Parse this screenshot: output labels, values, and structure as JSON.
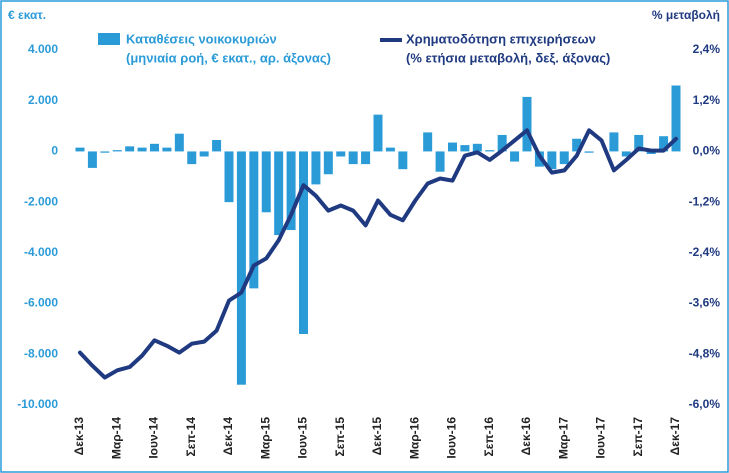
{
  "chart_data": {
    "type": "bar_line",
    "y_label": "€ εκατ.",
    "y2_label": "% μεταβολή",
    "categories": [
      "Δεκ-13",
      null,
      null,
      "Μαρ-14",
      null,
      null,
      "Ιουν-14",
      null,
      null,
      "Σεπ-14",
      null,
      null,
      "Δεκ-14",
      null,
      null,
      "Μαρ-15",
      null,
      null,
      "Ιουν-15",
      null,
      null,
      "Σεπ-15",
      null,
      null,
      "Δεκ-15",
      null,
      null,
      "Μαρ-16",
      null,
      null,
      "Ιουν-16",
      null,
      null,
      "Σεπ-16",
      null,
      null,
      "Δεκ-16",
      null,
      null,
      "Μαρ-17",
      null,
      null,
      "Ιουν-17",
      null,
      null,
      "Σεπ-17",
      null,
      null,
      "Δεκ-17"
    ],
    "series": [
      {
        "name": "Καταθέσεις νοικοκυριών",
        "description": "(μηνιαία ροή, € εκατ., αρ. άξονας)",
        "kind": "bar",
        "axis": "y",
        "color": "#2b9bd8",
        "values": [
          150,
          -650,
          -50,
          50,
          200,
          150,
          300,
          150,
          700,
          -500,
          -200,
          450,
          -2000,
          -9200,
          -5400,
          -2400,
          -3300,
          -3100,
          -7200,
          -1300,
          -900,
          -200,
          -500,
          -500,
          1450,
          150,
          -700,
          0,
          750,
          -800,
          350,
          250,
          300,
          50,
          650,
          -400,
          2150,
          -600,
          -700,
          -500,
          500,
          -50,
          0,
          750,
          -200,
          650,
          -100,
          600,
          2600
        ]
      },
      {
        "name": "Χρηματοδότηση επιχειρήσεων",
        "description": "(% ετήσια μεταβολή, δεξ. άξονας)",
        "kind": "line",
        "axis": "y2",
        "color": "#1f3a80",
        "values": [
          -4.76,
          -5.07,
          -5.35,
          -5.18,
          -5.1,
          -4.83,
          -4.47,
          -4.6,
          -4.76,
          -4.55,
          -4.5,
          -4.24,
          -3.53,
          -3.34,
          -2.7,
          -2.53,
          -2.1,
          -1.5,
          -0.8,
          -1.05,
          -1.4,
          -1.28,
          -1.4,
          -1.75,
          -1.16,
          -1.5,
          -1.63,
          -1.16,
          -0.76,
          -0.64,
          -0.69,
          -0.1,
          -0.02,
          -0.2,
          0.02,
          0.26,
          0.5,
          -0.1,
          -0.5,
          -0.45,
          -0.1,
          0.5,
          0.26,
          -0.45,
          -0.2,
          0.07,
          0.02,
          0.02,
          0.3
        ]
      }
    ],
    "ylim": [
      -10000,
      4000
    ],
    "yticks": [
      {
        "value": -10000,
        "label": "-10.000"
      },
      {
        "value": -8000,
        "label": "-8.000"
      },
      {
        "value": -6000,
        "label": "-6.000"
      },
      {
        "value": -4000,
        "label": "-4.000"
      },
      {
        "value": -2000,
        "label": "-2.000"
      },
      0,
      {
        "value": 2000,
        "label": "2.000"
      },
      {
        "value": 4000,
        "label": "4.000"
      }
    ],
    "y2lim": [
      -6,
      2.4
    ],
    "y2ticks": [
      {
        "value": -6,
        "label": "-6,0%"
      },
      {
        "value": -4.8,
        "label": "-4,8%"
      },
      {
        "value": -3.6,
        "label": "-3,6%"
      },
      {
        "value": -2.4,
        "label": "-2,4%"
      },
      {
        "value": -1.2,
        "label": "-1,2%"
      },
      {
        "value": 0,
        "label": "0,0%"
      },
      {
        "value": 1.2,
        "label": "1,2%"
      },
      {
        "value": 2.4,
        "label": "2,4%"
      }
    ]
  }
}
